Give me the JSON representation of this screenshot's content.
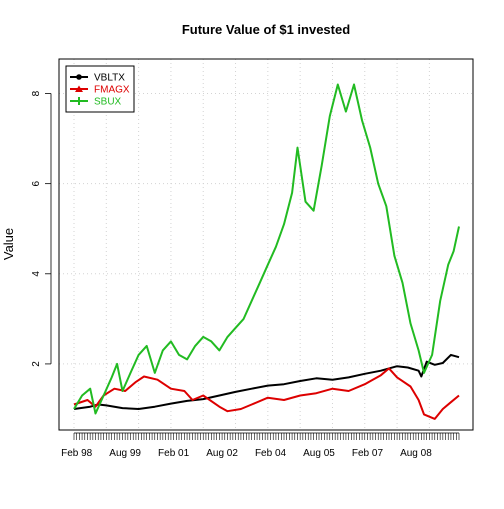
{
  "chart_data": {
    "type": "line",
    "title": "Future Value of $1 invested",
    "xlabel": "",
    "ylabel": "Value",
    "x_range": [
      "1998-01",
      "2009-12"
    ],
    "ylim": [
      0.8,
      8.5
    ],
    "y_ticks": [
      2,
      4,
      6,
      8
    ],
    "x_tick_labels": [
      {
        "label": "Feb 98",
        "date": "1998-02"
      },
      {
        "label": "Aug 99",
        "date": "1999-08"
      },
      {
        "label": "Feb 01",
        "date": "2001-02"
      },
      {
        "label": "Aug 02",
        "date": "2002-08"
      },
      {
        "label": "Feb 04",
        "date": "2004-02"
      },
      {
        "label": "Aug 05",
        "date": "2005-08"
      },
      {
        "label": "Feb 07",
        "date": "2007-02"
      },
      {
        "label": "Aug 08",
        "date": "2008-08"
      }
    ],
    "grid": true,
    "legend_position": "top-left",
    "series": [
      {
        "name": "VBLTX",
        "color": "#000000",
        "marker": "circle",
        "points": [
          [
            "1998-01",
            1.0
          ],
          [
            "1998-07",
            1.05
          ],
          [
            "1998-10",
            1.1
          ],
          [
            "1999-01",
            1.08
          ],
          [
            "1999-07",
            1.02
          ],
          [
            "2000-01",
            1.0
          ],
          [
            "2000-07",
            1.05
          ],
          [
            "2001-01",
            1.12
          ],
          [
            "2001-07",
            1.18
          ],
          [
            "2002-01",
            1.22
          ],
          [
            "2002-07",
            1.3
          ],
          [
            "2003-01",
            1.38
          ],
          [
            "2003-07",
            1.45
          ],
          [
            "2004-01",
            1.52
          ],
          [
            "2004-07",
            1.55
          ],
          [
            "2005-01",
            1.62
          ],
          [
            "2005-07",
            1.68
          ],
          [
            "2006-01",
            1.65
          ],
          [
            "2006-07",
            1.7
          ],
          [
            "2007-01",
            1.78
          ],
          [
            "2007-07",
            1.85
          ],
          [
            "2008-01",
            1.95
          ],
          [
            "2008-05",
            1.92
          ],
          [
            "2008-09",
            1.85
          ],
          [
            "2008-10",
            1.72
          ],
          [
            "2008-12",
            2.05
          ],
          [
            "2009-03",
            1.98
          ],
          [
            "2009-06",
            2.02
          ],
          [
            "2009-09",
            2.2
          ],
          [
            "2009-12",
            2.15
          ]
        ]
      },
      {
        "name": "FMAGX",
        "color": "#dd0000",
        "marker": "triangle",
        "points": [
          [
            "1998-01",
            1.1
          ],
          [
            "1998-06",
            1.2
          ],
          [
            "1998-09",
            1.05
          ],
          [
            "1998-12",
            1.3
          ],
          [
            "1999-04",
            1.45
          ],
          [
            "1999-08",
            1.4
          ],
          [
            "1999-12",
            1.6
          ],
          [
            "2000-03",
            1.72
          ],
          [
            "2000-08",
            1.65
          ],
          [
            "2001-01",
            1.45
          ],
          [
            "2001-06",
            1.4
          ],
          [
            "2001-09",
            1.2
          ],
          [
            "2002-01",
            1.3
          ],
          [
            "2002-07",
            1.05
          ],
          [
            "2002-10",
            0.95
          ],
          [
            "2003-03",
            1.0
          ],
          [
            "2003-07",
            1.1
          ],
          [
            "2004-01",
            1.25
          ],
          [
            "2004-07",
            1.2
          ],
          [
            "2005-01",
            1.3
          ],
          [
            "2005-07",
            1.35
          ],
          [
            "2006-01",
            1.45
          ],
          [
            "2006-07",
            1.4
          ],
          [
            "2007-01",
            1.55
          ],
          [
            "2007-07",
            1.75
          ],
          [
            "2007-10",
            1.9
          ],
          [
            "2008-01",
            1.7
          ],
          [
            "2008-06",
            1.5
          ],
          [
            "2008-09",
            1.2
          ],
          [
            "2008-11",
            0.88
          ],
          [
            "2009-03",
            0.78
          ],
          [
            "2009-06",
            1.0
          ],
          [
            "2009-09",
            1.15
          ],
          [
            "2009-12",
            1.3
          ]
        ]
      },
      {
        "name": "SBUX",
        "color": "#22bb22",
        "marker": "plus",
        "points": [
          [
            "1998-01",
            1.0
          ],
          [
            "1998-04",
            1.3
          ],
          [
            "1998-07",
            1.45
          ],
          [
            "1998-09",
            0.9
          ],
          [
            "1998-12",
            1.3
          ],
          [
            "1999-03",
            1.7
          ],
          [
            "1999-05",
            2.0
          ],
          [
            "1999-07",
            1.4
          ],
          [
            "1999-10",
            1.8
          ],
          [
            "2000-01",
            2.2
          ],
          [
            "2000-04",
            2.4
          ],
          [
            "2000-07",
            1.8
          ],
          [
            "2000-10",
            2.3
          ],
          [
            "2001-01",
            2.5
          ],
          [
            "2001-04",
            2.2
          ],
          [
            "2001-07",
            2.1
          ],
          [
            "2001-10",
            2.4
          ],
          [
            "2002-01",
            2.6
          ],
          [
            "2002-04",
            2.5
          ],
          [
            "2002-07",
            2.3
          ],
          [
            "2002-10",
            2.6
          ],
          [
            "2003-01",
            2.8
          ],
          [
            "2003-04",
            3.0
          ],
          [
            "2003-07",
            3.4
          ],
          [
            "2003-10",
            3.8
          ],
          [
            "2004-01",
            4.2
          ],
          [
            "2004-04",
            4.6
          ],
          [
            "2004-07",
            5.1
          ],
          [
            "2004-10",
            5.8
          ],
          [
            "2004-12",
            6.8
          ],
          [
            "2005-03",
            5.6
          ],
          [
            "2005-06",
            5.4
          ],
          [
            "2005-09",
            6.4
          ],
          [
            "2005-12",
            7.5
          ],
          [
            "2006-03",
            8.2
          ],
          [
            "2006-06",
            7.6
          ],
          [
            "2006-09",
            8.2
          ],
          [
            "2006-12",
            7.4
          ],
          [
            "2007-03",
            6.8
          ],
          [
            "2007-06",
            6.0
          ],
          [
            "2007-09",
            5.5
          ],
          [
            "2007-12",
            4.4
          ],
          [
            "2008-03",
            3.8
          ],
          [
            "2008-06",
            2.9
          ],
          [
            "2008-09",
            2.3
          ],
          [
            "2008-11",
            1.8
          ],
          [
            "2009-02",
            2.2
          ],
          [
            "2009-05",
            3.4
          ],
          [
            "2009-08",
            4.2
          ],
          [
            "2009-10",
            4.5
          ],
          [
            "2009-12",
            5.05
          ]
        ]
      }
    ]
  }
}
